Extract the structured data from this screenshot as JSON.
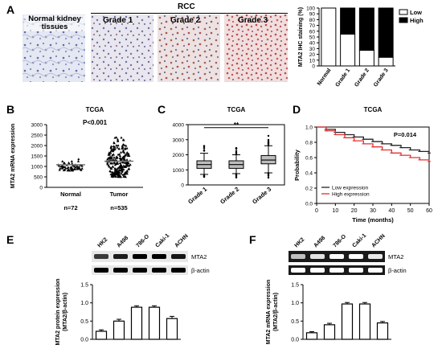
{
  "panels": {
    "A": "A",
    "B": "B",
    "C": "C",
    "D": "D",
    "E": "E",
    "F": "F"
  },
  "panelA": {
    "micro_labels": [
      "Normal kidney\ntissues",
      "Grade 1",
      "Grade 2",
      "Grade 3"
    ],
    "rcc_label": "RCC"
  },
  "panelE": {
    "cell_lines": [
      "HK2",
      "A498",
      "786-O",
      "Caki-1",
      "ACHN"
    ],
    "blot_labels": [
      "MTA2",
      "β-actin"
    ]
  },
  "panelF": {
    "cell_lines": [
      "HK2",
      "A498",
      "786-O",
      "Caki-1",
      "ACHN"
    ],
    "blot_labels": [
      "MTA2",
      "β-actin"
    ]
  },
  "chart_data": [
    {
      "id": "A-right",
      "type": "bar",
      "categories": [
        "Normal",
        "Grade 1",
        "Grade 2",
        "Grade 3"
      ],
      "series": [
        {
          "name": "Low",
          "values": [
            100,
            55,
            27,
            15
          ],
          "color": "#ffffff"
        },
        {
          "name": "High",
          "values": [
            0,
            45,
            73,
            85
          ],
          "color": "#000000"
        }
      ],
      "stacked": true,
      "ylabel": "MTA2 IHC staining (%)",
      "yticks": [
        0,
        10,
        20,
        30,
        40,
        50,
        60,
        70,
        80,
        90,
        100
      ],
      "ylim": [
        0,
        100
      ],
      "legend": "top-right"
    },
    {
      "id": "B",
      "type": "scatter",
      "title": "TCGA",
      "annotation": "P<0.001",
      "categories": [
        "Normal",
        "Tumor"
      ],
      "n_labels": [
        "n=72",
        "n=535"
      ],
      "ylabel": "MTA2 mRNA expression",
      "yticks": [
        0,
        500,
        1000,
        1500,
        2000,
        2500,
        3000
      ],
      "ylim": [
        0,
        3000
      ],
      "medians": [
        1080,
        1250
      ]
    },
    {
      "id": "C",
      "type": "box",
      "title": "TCGA",
      "annotation": "**",
      "categories": [
        "Grade 1",
        "Grade 2",
        "Grade 3"
      ],
      "yticks": [
        0,
        1000,
        2000,
        3000,
        4000
      ],
      "ylim": [
        0,
        4000
      ],
      "boxes": [
        {
          "min": 700,
          "q1": 1100,
          "median": 1350,
          "q3": 1600,
          "max": 2100
        },
        {
          "min": 750,
          "q1": 1100,
          "median": 1350,
          "q3": 1600,
          "max": 2000
        },
        {
          "min": 800,
          "q1": 1400,
          "median": 1650,
          "q3": 1950,
          "max": 2600
        }
      ]
    },
    {
      "id": "D",
      "type": "line",
      "title": "TCGA",
      "annotation": "P=0.014",
      "xlabel": "Time (months)",
      "ylabel": "Probability",
      "xticks": [
        0,
        10,
        20,
        30,
        40,
        50,
        60
      ],
      "yticks": [
        0.0,
        0.2,
        0.4,
        0.6,
        0.8,
        1.0
      ],
      "xlim": [
        0,
        60
      ],
      "ylim": [
        0,
        1
      ],
      "series": [
        {
          "name": "Low expression",
          "color": "#222222",
          "x": [
            0,
            5,
            10,
            15,
            20,
            25,
            30,
            35,
            40,
            45,
            50,
            55,
            60
          ],
          "y": [
            1.0,
            0.97,
            0.93,
            0.9,
            0.87,
            0.84,
            0.81,
            0.78,
            0.76,
            0.73,
            0.7,
            0.68,
            0.66
          ]
        },
        {
          "name": "High expression",
          "color": "#e03030",
          "x": [
            0,
            5,
            10,
            15,
            20,
            25,
            30,
            35,
            40,
            45,
            50,
            55,
            60
          ],
          "y": [
            1.0,
            0.95,
            0.9,
            0.86,
            0.82,
            0.78,
            0.74,
            0.7,
            0.66,
            0.63,
            0.6,
            0.57,
            0.55
          ]
        }
      ]
    },
    {
      "id": "E",
      "type": "bar",
      "categories": [
        "HK2",
        "A498",
        "786-O",
        "Caki-1",
        "ACHN"
      ],
      "values": [
        0.22,
        0.5,
        0.88,
        0.88,
        0.57
      ],
      "errors": [
        0.04,
        0.05,
        0.04,
        0.04,
        0.06
      ],
      "ylabel": "MTA2 protein expression\n(MTA2/β-actin)",
      "yticks": [
        0.0,
        0.5,
        1.0,
        1.5
      ],
      "ylim": [
        0,
        1.5
      ]
    },
    {
      "id": "F",
      "type": "bar",
      "categories": [
        "HK2",
        "A498",
        "786-O",
        "Caki-1",
        "ACHN"
      ],
      "values": [
        0.18,
        0.4,
        0.97,
        0.97,
        0.45
      ],
      "errors": [
        0.03,
        0.04,
        0.04,
        0.04,
        0.04
      ],
      "ylabel": "MTA2 mRNA expression\n(MTA2/β-actin)",
      "yticks": [
        0.0,
        0.5,
        1.0,
        1.5
      ],
      "ylim": [
        0,
        1.5
      ]
    }
  ]
}
